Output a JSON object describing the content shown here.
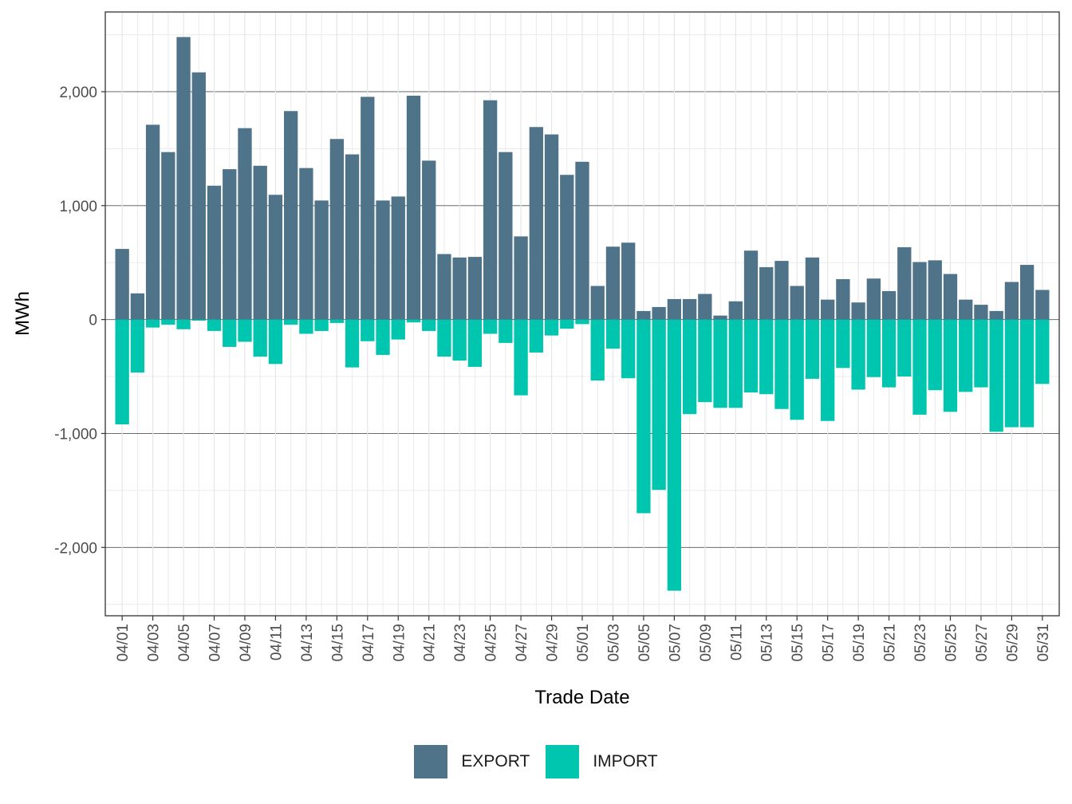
{
  "chart_data": {
    "type": "bar",
    "xlabel": "Trade Date",
    "ylabel": "MWh",
    "ylim": [
      -2600,
      2700
    ],
    "yticks": [
      -2000,
      -1000,
      0,
      1000,
      2000
    ],
    "ytick_labels": [
      "-2,000",
      "-1,000",
      "0",
      "1,000",
      "2,000"
    ],
    "xtick_labels": [
      "04/01",
      "04/03",
      "04/05",
      "04/07",
      "04/09",
      "04/11",
      "04/13",
      "04/15",
      "04/17",
      "04/19",
      "04/21",
      "04/23",
      "04/25",
      "04/27",
      "04/29",
      "05/01",
      "05/03",
      "05/05",
      "05/07",
      "05/09",
      "05/11",
      "05/13",
      "05/15",
      "05/17",
      "05/19",
      "05/21",
      "05/23",
      "05/25",
      "05/27",
      "05/29",
      "05/31"
    ],
    "categories": [
      "04/01",
      "04/02",
      "04/03",
      "04/04",
      "04/05",
      "04/06",
      "04/07",
      "04/08",
      "04/09",
      "04/10",
      "04/11",
      "04/12",
      "04/13",
      "04/14",
      "04/15",
      "04/16",
      "04/17",
      "04/18",
      "04/19",
      "04/20",
      "04/21",
      "04/22",
      "04/23",
      "04/24",
      "04/25",
      "04/26",
      "04/27",
      "04/28",
      "04/29",
      "04/30",
      "05/01",
      "05/02",
      "05/03",
      "05/04",
      "05/05",
      "05/06",
      "05/07",
      "05/08",
      "05/09",
      "05/10",
      "05/11",
      "05/12",
      "05/13",
      "05/14",
      "05/15",
      "05/16",
      "05/17",
      "05/18",
      "05/19",
      "05/20",
      "05/21",
      "05/22",
      "05/23",
      "05/24",
      "05/25",
      "05/26",
      "05/27",
      "05/28",
      "05/29",
      "05/30",
      "05/31"
    ],
    "grid": true,
    "legend_position": "bottom",
    "series": [
      {
        "name": "EXPORT",
        "color": "#4f7389",
        "values": [
          620,
          230,
          1710,
          1470,
          2480,
          2170,
          1175,
          1320,
          1680,
          1350,
          1095,
          1830,
          1330,
          1045,
          1585,
          1450,
          1955,
          1045,
          1080,
          1965,
          1395,
          575,
          545,
          550,
          1925,
          1470,
          730,
          1690,
          1625,
          1270,
          1385,
          295,
          640,
          675,
          75,
          110,
          180,
          180,
          225,
          35,
          160,
          605,
          460,
          515,
          295,
          545,
          175,
          355,
          150,
          360,
          250,
          635,
          505,
          520,
          400,
          175,
          130,
          75,
          330,
          480,
          260
        ]
      },
      {
        "name": "IMPORT",
        "color": "#00c5af",
        "values": [
          -920,
          -465,
          -70,
          -45,
          -85,
          -10,
          -100,
          -240,
          -195,
          -325,
          -390,
          -45,
          -125,
          -100,
          -30,
          -420,
          -190,
          -310,
          -175,
          -25,
          -100,
          -325,
          -360,
          -415,
          -125,
          -205,
          -665,
          -290,
          -140,
          -80,
          -40,
          -535,
          -255,
          -515,
          -1700,
          -1495,
          -2380,
          -830,
          -725,
          -775,
          -775,
          -640,
          -655,
          -785,
          -880,
          -520,
          -890,
          -425,
          -615,
          -505,
          -595,
          -500,
          -835,
          -620,
          -810,
          -635,
          -595,
          -985,
          -945,
          -945,
          -565
        ]
      }
    ]
  }
}
